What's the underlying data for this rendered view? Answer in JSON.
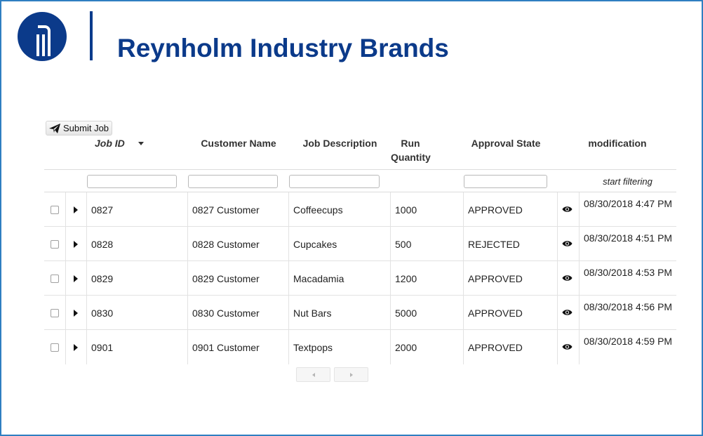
{
  "brand": {
    "title": "Reynholm Industry Brands",
    "logo_icon": "reynholm-logo-icon",
    "color": "#0b3a8a"
  },
  "toolbar": {
    "submit_label": "Submit Job",
    "submit_icon": "paper-plane-icon"
  },
  "table": {
    "columns": {
      "job_id": "Job ID",
      "customer_name": "Customer Name",
      "job_description": "Job Description",
      "run_quantity": "Run Quantity",
      "approval_state": "Approval State",
      "modification": "modification"
    },
    "sort": {
      "column": "job_id",
      "direction": "descending",
      "icon": "sort-down-icon"
    },
    "filters": {
      "job_id": "",
      "customer_name": "",
      "job_description": "",
      "approval_state": "",
      "modification_hint": "start filtering"
    },
    "rows": [
      {
        "job_id": "0827",
        "customer": "0827 Customer",
        "description": "Coffeecups",
        "quantity": "1000",
        "state": "APPROVED",
        "modified": "08/30/2018 4:47 PM"
      },
      {
        "job_id": "0828",
        "customer": "0828 Customer",
        "description": "Cupcakes",
        "quantity": "500",
        "state": "REJECTED",
        "modified": "08/30/2018 4:51 PM"
      },
      {
        "job_id": "0829",
        "customer": "0829 Customer",
        "description": "Macadamia",
        "quantity": "1200",
        "state": "APPROVED",
        "modified": "08/30/2018 4:53 PM"
      },
      {
        "job_id": "0830",
        "customer": "0830 Customer",
        "description": "Nut Bars",
        "quantity": "5000",
        "state": "APPROVED",
        "modified": "08/30/2018 4:56 PM"
      },
      {
        "job_id": "0901",
        "customer": "0901 Customer",
        "description": "Textpops",
        "quantity": "2000",
        "state": "APPROVED",
        "modified": "08/30/2018 4:59 PM"
      }
    ]
  },
  "pager": {
    "prev_icon": "chevron-left-icon",
    "next_icon": "chevron-right-icon"
  }
}
